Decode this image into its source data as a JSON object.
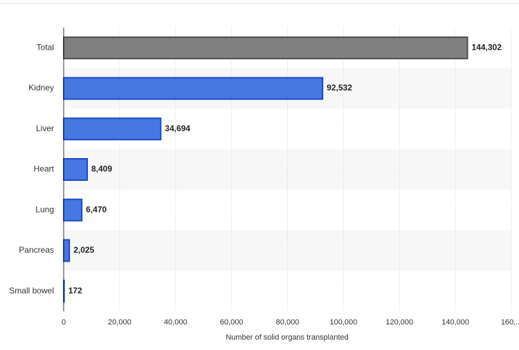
{
  "chart_data": {
    "type": "bar",
    "orientation": "horizontal",
    "categories": [
      "Total",
      "Kidney",
      "Liver",
      "Heart",
      "Lung",
      "Pancreas",
      "Small bowel"
    ],
    "values": [
      144302,
      92532,
      34694,
      8409,
      6470,
      2025,
      172
    ],
    "value_labels": [
      "144,302",
      "92,532",
      "34,694",
      "8,409",
      "6,470",
      "2,025",
      "172"
    ],
    "colors": [
      "#808080",
      "#4677e3",
      "#4677e3",
      "#4677e3",
      "#4677e3",
      "#4677e3",
      "#4677e3"
    ],
    "xlabel": "Number of solid organs transplanted",
    "xlim": [
      0,
      160000
    ],
    "xticks": [
      0,
      {
        "value": 20000,
        "label": "20,000"
      },
      {
        "value": 40000,
        "label": "40,000"
      },
      {
        "value": 60000,
        "label": "60,000"
      },
      {
        "value": 80000,
        "label": "80,000"
      },
      {
        "value": 100000,
        "label": "100,000"
      },
      {
        "value": 120000,
        "label": "120,000"
      },
      {
        "value": 140000,
        "label": "140,000"
      },
      {
        "value": 160000,
        "label": "160,..."
      }
    ],
    "grid": true
  }
}
